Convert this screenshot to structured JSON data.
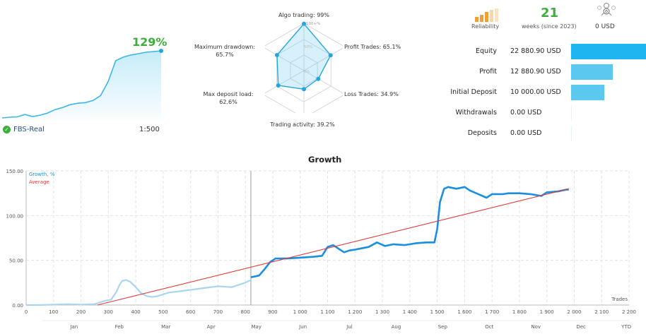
{
  "summary": {
    "growth_pct": "129%",
    "account_name": "FBS-Real",
    "leverage": "1:500",
    "sparkline": [
      3,
      4,
      4.5,
      8,
      5,
      7,
      10,
      15,
      18,
      22,
      24,
      25,
      28,
      35,
      55,
      85,
      90,
      93,
      95,
      97,
      98,
      99
    ]
  },
  "radar": {
    "labels": [
      {
        "name": "Algo trading",
        "text": "Algo trading: 99%",
        "value": 99
      },
      {
        "name": "Profit Trades",
        "text": "Profit Trades: 65.1%",
        "value": 65.1
      },
      {
        "name": "Loss Trades",
        "text": "Loss Trades: 34.9%",
        "value": 34.9
      },
      {
        "name": "Trading activity",
        "text": "Trading activity: 39.2%",
        "value": 39.2
      },
      {
        "name": "Max deposit load",
        "text": "Max deposit load:\n62.6%",
        "value": 62.6
      },
      {
        "name": "Maximum drawdown",
        "text": "Maximum drawdown:\n65.7%",
        "value": 65.7
      }
    ],
    "ring_labels": [
      "100+%",
      "50%",
      "0%"
    ]
  },
  "stats": {
    "reliability_label": "Reliability",
    "weeks_value": "21",
    "weeks_label": "weeks (since 2023)",
    "usd_value": "0 USD",
    "rows": [
      {
        "label": "Equity",
        "value": "22 880.90 USD",
        "ratio": 1.0
      },
      {
        "label": "Profit",
        "value": "12 880.90 USD",
        "ratio": 0.56
      },
      {
        "label": "Initial Deposit",
        "value": "10 000.00 USD",
        "ratio": 0.44
      },
      {
        "label": "Withdrawals",
        "value": "0.00 USD",
        "ratio": 0
      },
      {
        "label": "Deposits",
        "value": "0.00 USD",
        "ratio": 0
      }
    ]
  },
  "chart_data": {
    "type": "line",
    "title": "Growth",
    "xlabel": "Trades",
    "ylabel": "",
    "xlim": [
      0,
      2200
    ],
    "ylim": [
      0,
      150
    ],
    "x_ticks": [
      0,
      100,
      200,
      300,
      400,
      500,
      600,
      700,
      800,
      900,
      1000,
      1100,
      1200,
      1300,
      1400,
      1500,
      1600,
      1700,
      1800,
      1900,
      2000,
      2100,
      2200
    ],
    "x_tick_labels": [
      "0",
      "100",
      "200",
      "300",
      "400",
      "500",
      "600",
      "700",
      "800",
      "900",
      "1 000",
      "1 100",
      "1 200",
      "1 300",
      "1 400",
      "1 500",
      "1 600",
      "1 700",
      "1 800",
      "1 900",
      "2 000",
      "2 100",
      "2 200"
    ],
    "y_ticks": [
      0,
      50,
      100,
      150
    ],
    "y_tick_labels": [
      "0.00",
      "50.00",
      "100.00",
      "150.00"
    ],
    "months": [
      {
        "label": "Jan",
        "x": 175
      },
      {
        "label": "Feb",
        "x": 340
      },
      {
        "label": "Mar",
        "x": 510
      },
      {
        "label": "Apr",
        "x": 675
      },
      {
        "label": "May",
        "x": 840
      },
      {
        "label": "Jun",
        "x": 1010
      },
      {
        "label": "Jul",
        "x": 1180
      },
      {
        "label": "Aug",
        "x": 1350
      },
      {
        "label": "Sep",
        "x": 1520
      },
      {
        "label": "Oct",
        "x": 1690
      },
      {
        "label": "Nov",
        "x": 1860
      },
      {
        "label": "Dec",
        "x": 2025
      },
      {
        "label": "YTD",
        "x": 2190
      }
    ],
    "legend": [
      "Growth, %",
      "Average"
    ],
    "series": [
      {
        "name": "Growth, % (early)",
        "color": "#a9d6ee",
        "x": [
          0,
          50,
          100,
          150,
          200,
          250,
          290,
          310,
          330,
          340,
          350,
          365,
          380,
          400,
          420,
          440,
          460,
          480,
          500,
          520,
          550,
          600,
          650,
          700,
          750,
          800,
          820
        ],
        "y": [
          0,
          0,
          0.5,
          1,
          0.5,
          1,
          5,
          6,
          15,
          22,
          27,
          28,
          26,
          20,
          13,
          10,
          9,
          10,
          12,
          14,
          15,
          17,
          19,
          21,
          20,
          25,
          28
        ]
      },
      {
        "name": "Growth, %",
        "color": "#1a8fe0",
        "x": [
          820,
          850,
          870,
          890,
          910,
          950,
          1000,
          1050,
          1080,
          1100,
          1120,
          1140,
          1160,
          1180,
          1200,
          1250,
          1280,
          1310,
          1340,
          1380,
          1420,
          1460,
          1490,
          1500,
          1510,
          1525,
          1540,
          1570,
          1600,
          1620,
          1650,
          1680,
          1700,
          1740,
          1760,
          1800,
          1840,
          1860,
          1880,
          1900,
          1940,
          1970,
          1980
        ],
        "y": [
          31,
          33,
          40,
          48,
          52,
          52,
          53,
          54,
          55,
          65,
          67,
          63,
          59,
          61,
          62,
          65,
          70,
          66,
          68,
          67,
          69,
          70,
          70,
          85,
          115,
          130,
          132,
          130,
          132,
          128,
          124,
          120,
          124,
          124,
          125,
          125,
          124,
          123,
          122,
          126,
          127,
          129,
          129
        ]
      },
      {
        "name": "Average",
        "color": "#e03a3a",
        "x": [
          260,
          1980
        ],
        "y": [
          0,
          130
        ]
      }
    ]
  }
}
